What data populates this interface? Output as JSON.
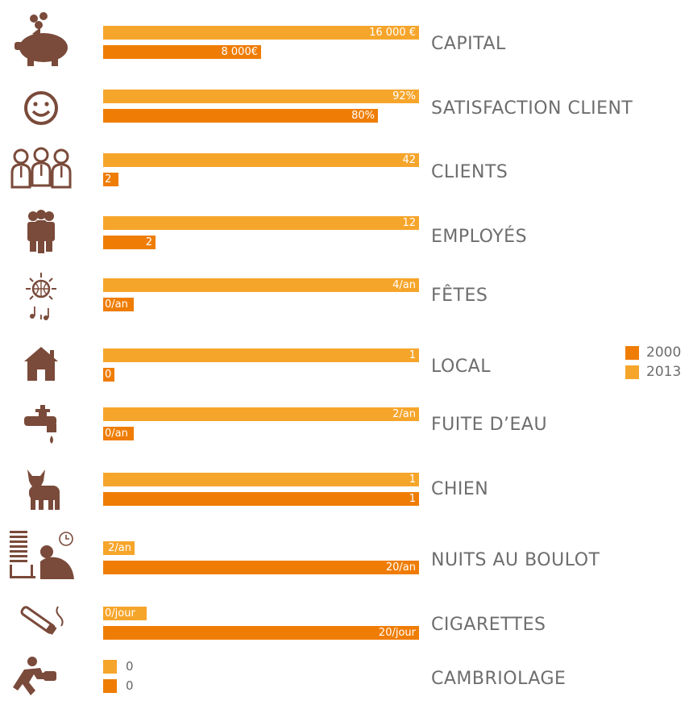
{
  "colors": {
    "2013": "#f6a52b",
    "2000": "#ef7d05",
    "icon": "#7a4a3a",
    "label": "#6d6d6d"
  },
  "legend": [
    {
      "name": "2000",
      "color": "#ef7d05"
    },
    {
      "name": "2013",
      "color": "#f6a52b"
    }
  ],
  "chart_data": {
    "type": "bar",
    "orientation": "horizontal",
    "legend_position": "right",
    "grid": false,
    "series_order": [
      "2013",
      "2000"
    ],
    "rows": [
      {
        "label": "CAPITAL",
        "icon": "piggy-bank-icon",
        "v2013": 16000,
        "v2000": 8000,
        "l2013": "16 000 €",
        "l2000": "8 000€"
      },
      {
        "label": "SATISFACTION CLIENT",
        "icon": "smiley-icon",
        "v2013": 92,
        "v2000": 80,
        "l2013": "92%",
        "l2000": "80%"
      },
      {
        "label": "CLIENTS",
        "icon": "clients-icon",
        "v2013": 42,
        "v2000": 2,
        "l2013": "42",
        "l2000": "2"
      },
      {
        "label": "EMPLOYÉS",
        "icon": "employees-icon",
        "v2013": 12,
        "v2000": 2,
        "l2013": "12",
        "l2000": "2"
      },
      {
        "label": "FÊTES",
        "icon": "disco-ball-icon",
        "v2013": 4,
        "v2000": 0,
        "l2013": "4/an",
        "l2000": "0/an"
      },
      {
        "label": "LOCAL",
        "icon": "house-icon",
        "v2013": 1,
        "v2000": 0,
        "l2013": "1",
        "l2000": "0"
      },
      {
        "label": "FUITE D’EAU",
        "icon": "faucet-icon",
        "v2013": 2,
        "v2000": 0,
        "l2013": "2/an",
        "l2000": "0/an"
      },
      {
        "label": "CHIEN",
        "icon": "dog-icon",
        "v2013": 1,
        "v2000": 1,
        "l2013": "1",
        "l2000": "1"
      },
      {
        "label": "NUITS AU BOULOT",
        "icon": "night-work-icon",
        "v2013": 2,
        "v2000": 20,
        "l2013": "2/an",
        "l2000": "20/an"
      },
      {
        "label": "CIGARETTES",
        "icon": "cigarette-icon",
        "v2013": 0,
        "v2000": 20,
        "l2013": "0/jour",
        "l2000": "20/jour"
      },
      {
        "label": "CAMBRIOLAGE",
        "icon": "burglar-icon",
        "v2013": 0,
        "v2000": 0,
        "l2013": "0",
        "l2000": "0"
      }
    ]
  }
}
